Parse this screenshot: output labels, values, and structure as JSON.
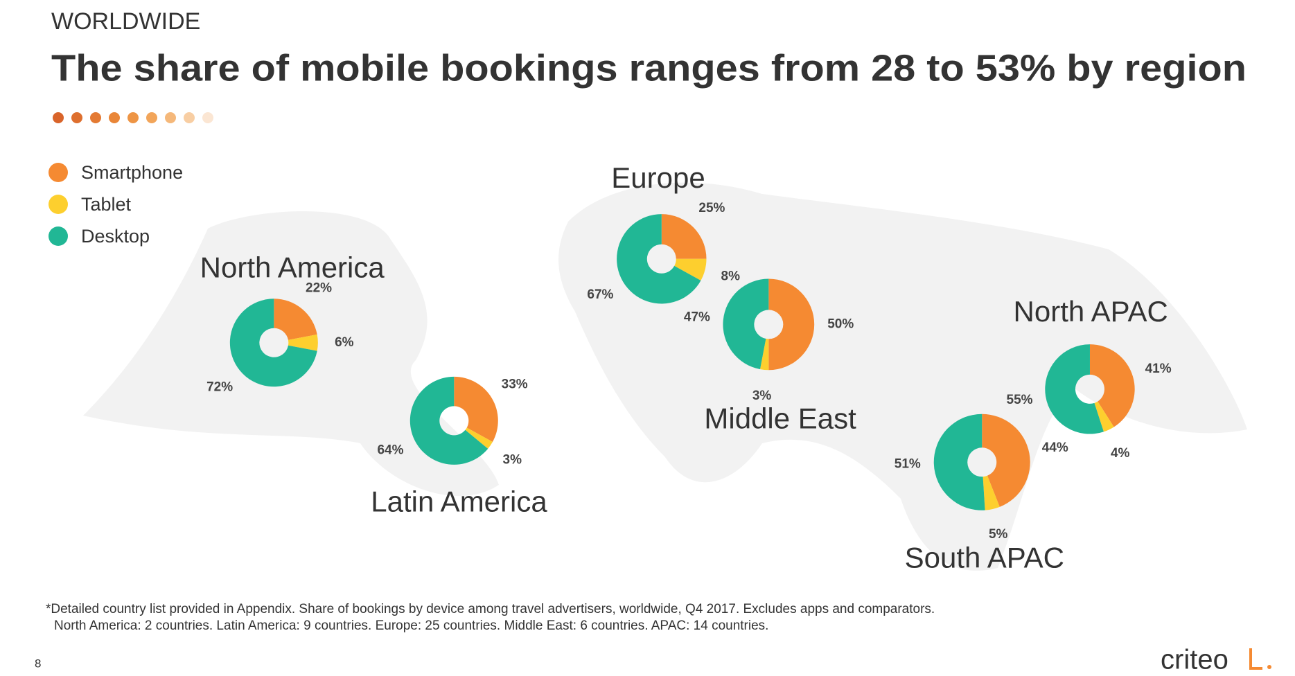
{
  "header": {
    "kicker": "WORLDWIDE",
    "title": "The share of mobile bookings ranges from 28 to 53% by region"
  },
  "legend": [
    {
      "name": "Smartphone",
      "color": "#f58a32"
    },
    {
      "name": "Tablet",
      "color": "#fdcf2e"
    },
    {
      "name": "Desktop",
      "color": "#21b795"
    }
  ],
  "chart_data": [
    {
      "type": "pie",
      "title": "North America",
      "values": [
        22,
        6,
        72
      ],
      "value_labels": [
        "22%",
        "6%",
        "72%"
      ]
    },
    {
      "type": "pie",
      "title": "Latin America",
      "values": [
        33,
        3,
        64
      ],
      "value_labels": [
        "33%",
        "3%",
        "64%"
      ]
    },
    {
      "type": "pie",
      "title": "Europe",
      "values": [
        25,
        8,
        67
      ],
      "value_labels": [
        "25%",
        "8%",
        "67%"
      ]
    },
    {
      "type": "pie",
      "title": "Middle East",
      "values": [
        50,
        3,
        47
      ],
      "value_labels": [
        "50%",
        "3%",
        "47%"
      ]
    },
    {
      "type": "pie",
      "title": "North APAC",
      "values": [
        41,
        4,
        55
      ],
      "value_labels": [
        "41%",
        "4%",
        "55%"
      ]
    },
    {
      "type": "pie",
      "title": "South APAC",
      "values": [
        44,
        5,
        51
      ],
      "value_labels": [
        "44%",
        "5%",
        "51%"
      ]
    }
  ],
  "footnote": [
    "*Detailed country list provided in Appendix. Share of bookings by device among travel advertisers, worldwide, Q4 2017. Excludes apps and comparators.",
    "North America: 2 countries. Latin America: 9 countries. Europe: 25 countries. Middle East: 6 countries. APAC: 14 countries."
  ],
  "page_number": "8",
  "logo": "criteo"
}
